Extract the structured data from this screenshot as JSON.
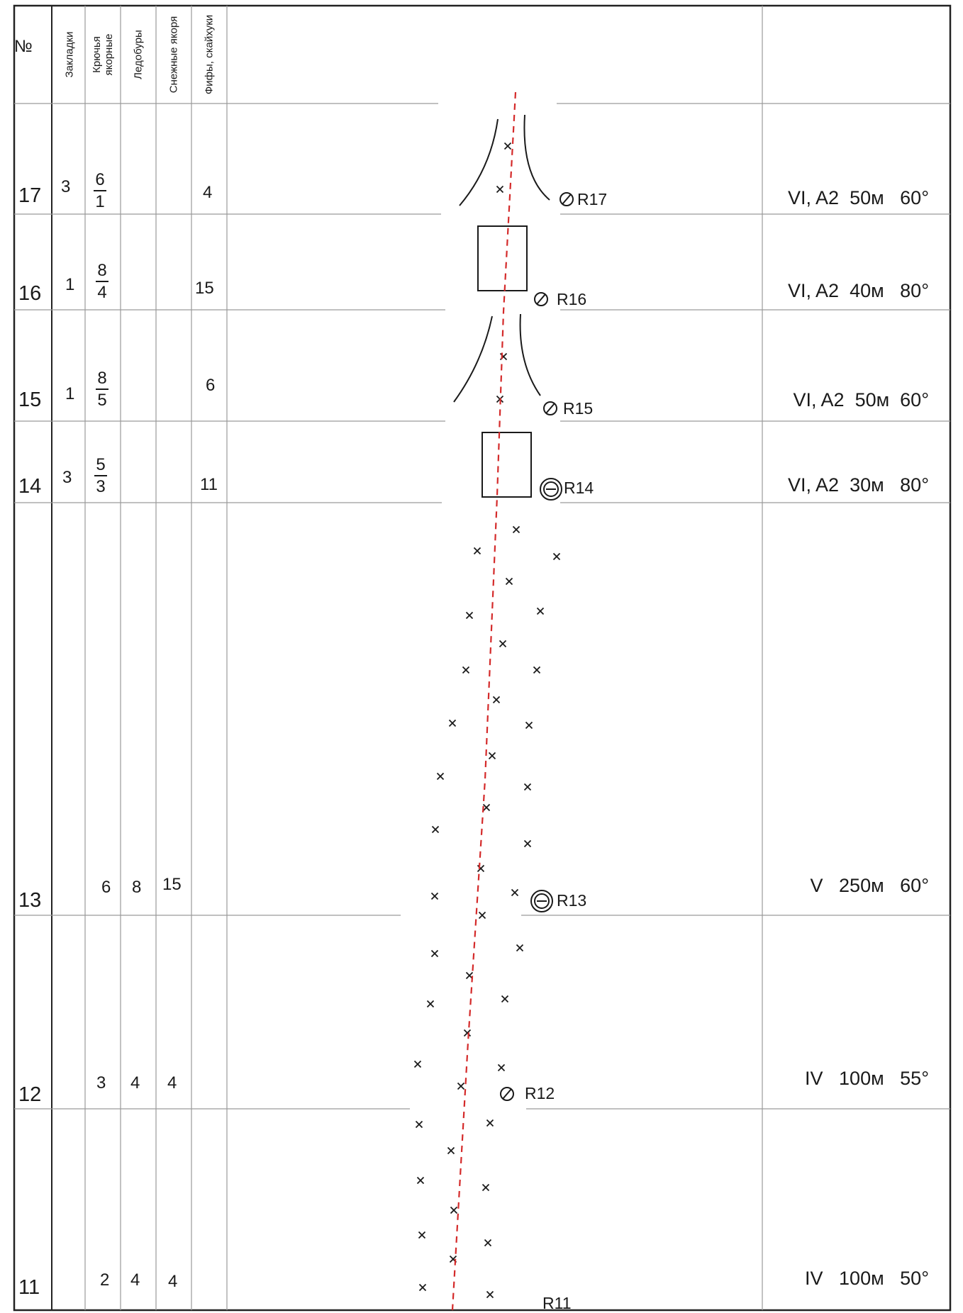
{
  "table": {
    "header": {
      "number": "№",
      "nuts": "Закладки",
      "pitons": "Крючья\nякорные",
      "ice_screws": "Ледобуры",
      "snow_anchors": "Снежные якоря",
      "hooks": "Фифы, скайхуки"
    },
    "rows": [
      {
        "num": "17",
        "nuts": "3",
        "piton_top": "6",
        "piton_bottom": "1",
        "ice": "",
        "snow": "",
        "hooks": "4",
        "note": "VI, A2  50м   60°"
      },
      {
        "num": "16",
        "nuts": "1",
        "piton_top": "8",
        "piton_bottom": "4",
        "ice": "",
        "snow": "",
        "hooks": "15",
        "note": "VI, A2  40м   80°"
      },
      {
        "num": "15",
        "nuts": "1",
        "piton_top": "8",
        "piton_bottom": "5",
        "ice": "",
        "snow": "",
        "hooks": "6",
        "note": "VI, A2  50м  60°"
      },
      {
        "num": "14",
        "nuts": "3",
        "piton_top": "5",
        "piton_bottom": "3",
        "ice": "",
        "snow": "",
        "hooks": "11",
        "note": "VI, A2  30м   80°"
      },
      {
        "num": "13",
        "nuts": "",
        "pitons": "6",
        "ice": "8",
        "snow": "15",
        "hooks": "",
        "note": "V   250м   60°"
      },
      {
        "num": "12",
        "nuts": "",
        "pitons": "3",
        "ice": "4",
        "snow": "4",
        "hooks": "",
        "note": "IV   100м   55°"
      },
      {
        "num": "11",
        "nuts": "",
        "pitons": "2",
        "ice": "4",
        "snow": "4",
        "hooks": "",
        "note": "IV   100м   50°"
      }
    ]
  },
  "stations": [
    "R17",
    "R16",
    "R15",
    "R14",
    "R13",
    "R12",
    "R11"
  ],
  "colors": {
    "route": "#d42a2a",
    "ink": "#1a1a1a",
    "grid": "#9a9a9a",
    "frame": "#222222"
  },
  "icons": {
    "belay_bolt": "slashed-circle-icon",
    "belay_bolt_double": "double-circle-icon",
    "snow_ice_mark": "cross-mark-icon"
  }
}
